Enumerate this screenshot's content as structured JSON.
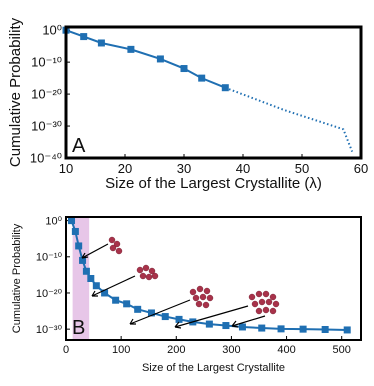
{
  "chart_data": [
    {
      "type": "line",
      "panel_label": "A",
      "x_label": "Size of the Largest Crystallite (λ)",
      "y_label": "Cumulative Probability",
      "log_y": true,
      "xlim": [
        10,
        60
      ],
      "xticks": [
        10,
        20,
        30,
        40,
        50,
        60
      ],
      "ylim": [
        1e-40,
        10.0
      ],
      "yticks": [
        {
          "value": 1,
          "label": "10⁰"
        },
        {
          "value": 1e-10,
          "label": "10⁻¹⁰"
        },
        {
          "value": 1e-20,
          "label": "10⁻²⁰"
        },
        {
          "value": 1e-30,
          "label": "10⁻³⁰"
        },
        {
          "value": 1e-40,
          "label": "10⁻⁴⁰"
        }
      ],
      "series": [
        {
          "color": "#1f6fb2",
          "style": "solid",
          "marker": true,
          "x": [
            10,
            13,
            16,
            21,
            26,
            30,
            33,
            37
          ],
          "values": [
            1,
            0.01,
            0.0001,
            1e-06,
            1e-09,
            1e-12,
            1e-15,
            1e-18
          ]
        },
        {
          "color": "#1f6fb2",
          "style": "dotted",
          "marker": false,
          "x": [
            37,
            47,
            57,
            58.5
          ],
          "values": [
            1e-18,
            1e-25,
            1e-31,
            1e-38
          ]
        }
      ]
    },
    {
      "type": "line",
      "panel_label": "B",
      "x_label": "Size of the Largest Crystallite",
      "y_label": "Cumulative Probability",
      "log_y": true,
      "xlim": [
        0,
        535
      ],
      "xticks": [
        0,
        100,
        200,
        300,
        400,
        500
      ],
      "ylim": [
        1e-33,
        10.0
      ],
      "yticks": [
        {
          "value": 1,
          "label": "10⁰"
        },
        {
          "value": 1e-10,
          "label": "10⁻¹⁰"
        },
        {
          "value": 1e-20,
          "label": "10⁻²⁰"
        },
        {
          "value": 1e-30,
          "label": "10⁻³⁰"
        }
      ],
      "shaded_x": [
        12,
        42
      ],
      "shade_color": "#e7c6e8",
      "series": [
        {
          "color": "#1f6fb2",
          "style": "solid",
          "marker": true,
          "x": [
            10,
            17,
            23,
            30,
            37,
            45,
            55,
            70,
            90,
            110,
            130,
            155,
            180,
            205,
            230,
            260,
            290,
            320,
            355,
            390,
            430,
            470,
            510
          ],
          "values": [
            1,
            0.001,
            1e-07,
            1e-11,
            1e-14,
            1e-16,
            1e-18,
            1e-20,
            1e-22,
            1e-23,
            3e-25,
            3e-26,
            3e-27,
            5e-28,
            1e-28,
            2.5e-29,
            1e-29,
            4e-30,
            2e-30,
            1.2e-30,
            1e-30,
            8e-31,
            6e-31
          ]
        }
      ]
    }
  ]
}
